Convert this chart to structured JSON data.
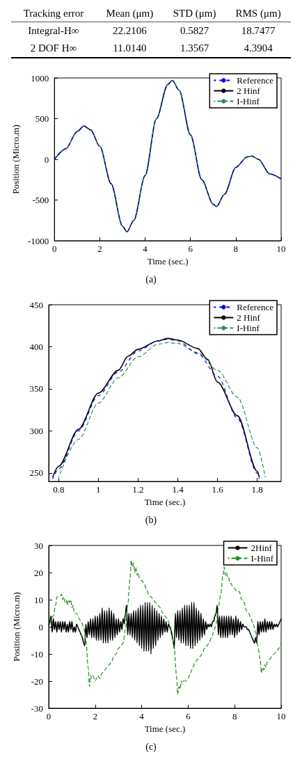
{
  "chart_data": [
    {
      "type": "other",
      "categories": [
        "Tracking error",
        "Mean (μm)",
        "STD (μm)",
        "RMS (μm)"
      ],
      "y_categories": [
        "Integral-H∞",
        "2 DOF H∞"
      ],
      "cell_labels": [
        [
          "22.2106",
          "0.5827",
          "18.7477"
        ],
        [
          "11.0140",
          "1.3567",
          "4.3904"
        ]
      ]
    },
    {
      "type": "line",
      "xlabel": "Time (sec.)",
      "ylabel": "Position (Micro.m)",
      "annotations": [
        "(a)"
      ],
      "xlim": [
        0,
        10
      ],
      "ylim": [
        -1000,
        1000
      ],
      "xticks": [
        0,
        2,
        4,
        6,
        8,
        10
      ],
      "yticks": [
        -1000,
        -500,
        0,
        500,
        1000
      ],
      "legend": "top right",
      "grid": false,
      "x": [
        0,
        0.5,
        1,
        1.3,
        1.6,
        2,
        2.5,
        3,
        3.2,
        3.5,
        4,
        4.5,
        5,
        5.2,
        5.5,
        6,
        6.5,
        7,
        7.15,
        7.5,
        8,
        8.5,
        8.7,
        9,
        9.5,
        10
      ],
      "series": [
        {
          "name": "Reference",
          "color": "#0000ff",
          "line_style": "dashed",
          "values": [
            0,
            130,
            340,
            410,
            360,
            160,
            -300,
            -820,
            -890,
            -750,
            -200,
            500,
            920,
            970,
            850,
            300,
            -250,
            -550,
            -580,
            -430,
            -100,
            30,
            40,
            0,
            -180,
            -240
          ]
        },
        {
          "name": "2 Hinf",
          "color": "#000000",
          "line_style": "solid",
          "values": [
            0,
            130,
            340,
            410,
            360,
            160,
            -300,
            -820,
            -890,
            -750,
            -200,
            500,
            920,
            970,
            850,
            300,
            -250,
            -550,
            -580,
            -430,
            -100,
            30,
            40,
            0,
            -180,
            -240
          ]
        },
        {
          "name": "I-Hinf",
          "color": "#2e8b57",
          "line_style": "dashed",
          "values": [
            0,
            130,
            340,
            410,
            360,
            160,
            -300,
            -820,
            -890,
            -750,
            -200,
            500,
            920,
            970,
            850,
            300,
            -250,
            -550,
            -580,
            -430,
            -100,
            30,
            40,
            0,
            -180,
            -240
          ]
        }
      ]
    },
    {
      "type": "line",
      "xlabel": "Time (sec.)",
      "annotations": [
        "(b)"
      ],
      "xlim": [
        0.75,
        1.92
      ],
      "ylim": [
        240,
        450
      ],
      "xticks": [
        0.8,
        1,
        1.2,
        1.4,
        1.6,
        1.8
      ],
      "yticks": [
        250,
        300,
        350,
        400,
        450
      ],
      "legend": "top right",
      "grid": false,
      "series": [
        {
          "name": "Reference",
          "color": "#0000ff",
          "line_style": "dashed",
          "x": [
            0.77,
            0.8,
            0.9,
            1.0,
            1.1,
            1.2,
            1.3,
            1.35,
            1.4,
            1.5,
            1.6,
            1.7,
            1.8,
            1.81
          ],
          "values": [
            243,
            255,
            300,
            342,
            370,
            395,
            407,
            409,
            407,
            392,
            365,
            315,
            250,
            243
          ]
        },
        {
          "name": "2 Hinf",
          "color": "#000000",
          "line_style": "solid",
          "x": [
            0.77,
            0.8,
            0.9,
            1.0,
            1.1,
            1.15,
            1.2,
            1.3,
            1.35,
            1.4,
            1.5,
            1.55,
            1.6,
            1.7,
            1.8,
            1.81
          ],
          "values": [
            245,
            258,
            302,
            345,
            372,
            389,
            397,
            407,
            410,
            408,
            398,
            385,
            358,
            318,
            252,
            245
          ]
        },
        {
          "name": "I-Hinf",
          "color": "#2e8b57",
          "line_style": "dashed",
          "x": [
            0.8,
            0.9,
            1.0,
            1.1,
            1.2,
            1.3,
            1.35,
            1.4,
            1.5,
            1.6,
            1.7,
            1.8,
            1.84
          ],
          "values": [
            245,
            290,
            333,
            363,
            388,
            403,
            405,
            404,
            393,
            372,
            340,
            280,
            245
          ]
        }
      ]
    },
    {
      "type": "line",
      "xlabel": "Time (sec.)",
      "ylabel": "Position (Micro.m)",
      "annotations": [
        "(c)"
      ],
      "xlim": [
        0,
        10
      ],
      "ylim": [
        -30,
        30
      ],
      "xticks": [
        0,
        2,
        4,
        6,
        8,
        10
      ],
      "yticks": [
        -30,
        -20,
        -10,
        0,
        10,
        20,
        30
      ],
      "legend": "top right",
      "grid": false,
      "series": [
        {
          "name": "2Hinf",
          "color": "#000000",
          "line_style": "solid",
          "x": [
            0,
            0.05,
            0.1,
            0.15,
            0.2,
            0.25,
            0.3,
            0.35,
            0.4,
            0.45,
            0.5,
            0.55,
            0.6,
            0.65,
            0.7,
            0.75,
            0.8,
            0.85,
            0.9,
            0.95,
            1,
            1.05,
            1.1,
            1.15,
            1.2,
            1.25,
            1.3,
            1.35,
            1.4,
            1.45,
            1.5,
            1.55,
            1.6,
            1.65,
            1.7,
            1.75,
            1.8,
            1.85,
            1.9,
            1.95,
            2,
            2.05,
            2.1,
            2.15,
            2.2,
            2.25,
            2.3,
            2.35,
            2.4,
            2.45,
            2.5,
            2.55,
            2.6,
            2.65,
            2.7,
            2.75,
            2.8,
            2.85,
            2.9,
            2.95,
            3,
            3.05,
            3.1,
            3.15,
            3.2,
            3.25,
            3.3,
            3.35,
            3.4,
            3.45,
            3.5,
            3.55,
            3.6,
            3.65,
            3.7,
            3.75,
            3.8,
            3.85,
            3.9,
            3.95,
            4,
            4.05,
            4.1,
            4.15,
            4.2,
            4.25,
            4.3,
            4.35,
            4.4,
            4.45,
            4.5,
            4.55,
            4.6,
            4.65,
            4.7,
            4.75,
            4.8,
            4.85,
            4.9,
            4.95,
            5,
            5.05,
            5.1,
            5.15,
            5.2,
            5.25,
            5.3,
            5.35,
            5.4,
            5.45,
            5.5,
            5.55,
            5.6,
            5.65,
            5.7,
            5.75,
            5.8,
            5.85,
            5.9,
            5.95,
            6,
            6.05,
            6.1,
            6.15,
            6.2,
            6.25,
            6.3,
            6.35,
            6.4,
            6.45,
            6.5,
            6.55,
            6.6,
            6.65,
            6.7,
            6.75,
            6.8,
            6.85,
            6.9,
            6.95,
            7,
            7.05,
            7.1,
            7.15,
            7.2,
            7.25,
            7.3,
            7.35,
            7.4,
            7.45,
            7.5,
            7.55,
            7.6,
            7.65,
            7.7,
            7.75,
            7.8,
            7.85,
            7.9,
            7.95,
            8,
            8.05,
            8.1,
            8.15,
            8.2,
            8.25,
            8.3,
            8.35,
            8.4,
            8.45,
            8.5,
            8.55,
            8.6,
            8.65,
            8.7,
            8.75,
            8.8,
            8.85,
            8.9,
            8.95,
            9,
            9.05,
            9.1,
            9.15,
            9.2,
            9.25,
            9.3,
            9.35,
            9.4,
            9.45,
            9.5,
            9.55,
            9.6,
            9.65,
            9.7,
            9.75,
            9.8,
            9.85,
            9.9,
            9.95,
            10
          ],
          "values": [
            0,
            2,
            4,
            -2,
            3,
            -1,
            2,
            -2,
            2,
            -1,
            2,
            -2,
            2,
            -1,
            2,
            -2,
            1,
            -2,
            2,
            -1,
            2,
            -2,
            0,
            -2,
            1,
            0,
            -1,
            -2,
            -3,
            -4,
            -6,
            -7,
            1,
            -4,
            2,
            -3,
            3,
            -4,
            3,
            -4,
            4,
            -5,
            4,
            -5,
            5,
            -5,
            7,
            -6,
            6,
            -6,
            6,
            -6,
            7,
            -5,
            6,
            -5,
            5,
            -4,
            3,
            -3,
            3,
            -2,
            2,
            -1,
            3,
            1,
            5,
            8,
            -3,
            5,
            -3,
            5,
            -4,
            6,
            -5,
            6,
            -6,
            7,
            -7,
            8,
            -8,
            8,
            -9,
            9,
            -9,
            9,
            -9,
            9,
            -10,
            8,
            -8,
            7,
            -7,
            6,
            -5,
            5,
            -4,
            4,
            -3,
            3,
            -2,
            2,
            -2,
            1,
            0,
            -1,
            -3,
            -5,
            -8,
            5,
            -4,
            6,
            -5,
            6,
            -6,
            7,
            -6,
            8,
            -7,
            8,
            -7,
            8,
            -8,
            9,
            -8,
            9,
            -7,
            7,
            -6,
            6,
            -5,
            5,
            -4,
            3,
            -3,
            2,
            -1,
            1,
            0,
            1,
            0,
            2,
            2,
            4,
            5,
            8,
            -3,
            4,
            -4,
            4,
            -4,
            4,
            -4,
            4,
            -4,
            4,
            -3,
            4,
            -3,
            3,
            -4,
            4,
            -3,
            3,
            -2,
            2,
            -1,
            1,
            0,
            0,
            0,
            -1,
            -1,
            -2,
            -3,
            -4,
            -5,
            -6,
            -4,
            -6,
            2,
            -3,
            2,
            -2,
            2,
            -2,
            3,
            -2,
            2,
            -1,
            2,
            -1,
            2,
            -1,
            1,
            0,
            1,
            0,
            1,
            2,
            3
          ]
        },
        {
          "name": "I-Hinf",
          "color": "#228b22",
          "line_style": "dashed",
          "x": [
            0,
            0.2,
            0.3,
            0.35,
            0.5,
            0.55,
            0.6,
            0.65,
            0.7,
            0.75,
            0.8,
            0.85,
            0.9,
            0.95,
            1,
            1.05,
            1.1,
            1.2,
            1.3,
            1.4,
            1.5,
            1.6,
            1.7,
            1.75,
            1.8,
            1.85,
            1.9,
            2,
            2.1,
            2.2,
            2.3,
            2.4,
            2.5,
            2.6,
            2.7,
            2.8,
            2.9,
            3,
            3.1,
            3.2,
            3.3,
            3.4,
            3.5,
            3.55,
            3.6,
            3.65,
            3.7,
            3.75,
            3.8,
            3.85,
            3.9,
            4,
            4.1,
            4.2,
            4.3,
            4.4,
            4.5,
            4.6,
            4.7,
            4.8,
            4.9,
            5,
            5.1,
            5.2,
            5.3,
            5.4,
            5.5,
            5.55,
            5.6,
            5.65,
            5.7,
            5.75,
            5.8,
            5.9,
            6,
            6.1,
            6.2,
            6.3,
            6.4,
            6.5,
            6.6,
            6.7,
            6.8,
            6.9,
            7,
            7.1,
            7.2,
            7.3,
            7.4,
            7.5,
            7.55,
            7.6,
            7.65,
            7.7,
            7.75,
            7.8,
            7.85,
            7.9,
            8,
            8.1,
            8.2,
            8.3,
            8.4,
            8.5,
            8.6,
            8.7,
            8.8,
            8.9,
            9,
            9.1,
            9.15,
            9.2,
            9.25,
            9.3,
            9.35,
            9.4,
            9.5,
            9.6,
            9.7,
            9.8,
            9.9,
            10
          ],
          "values": [
            0,
            4,
            8,
            11,
            11.5,
            12,
            10,
            11,
            9,
            10,
            8,
            10,
            9,
            10,
            7,
            8,
            5,
            5,
            3,
            2,
            0,
            -5,
            -15,
            -22,
            -18,
            -19,
            -18,
            -20,
            -18,
            -19,
            -17,
            -16,
            -15,
            -14,
            -13,
            -11,
            -10,
            -8,
            -7,
            -6,
            -1,
            8,
            18,
            24.5,
            22,
            23.5,
            20,
            22,
            19,
            20,
            18,
            17,
            16,
            14,
            12,
            11,
            10,
            9,
            8,
            7,
            5,
            4,
            3,
            1,
            -2,
            -8,
            -18,
            -25,
            -22,
            -23,
            -20,
            -21,
            -20,
            -20,
            -19,
            -17,
            -15,
            -13,
            -12,
            -11,
            -10,
            -8,
            -7,
            -6,
            -4,
            -2,
            1,
            7,
            12,
            19,
            22,
            19,
            20,
            18,
            18,
            16,
            16,
            15,
            14,
            13,
            13,
            10,
            9,
            6,
            5,
            3,
            1,
            -2,
            -7,
            -12,
            -17,
            -15,
            -16,
            -14,
            -15,
            -13,
            -12,
            -11,
            -10,
            -9,
            -8,
            -6
          ]
        }
      ]
    }
  ]
}
